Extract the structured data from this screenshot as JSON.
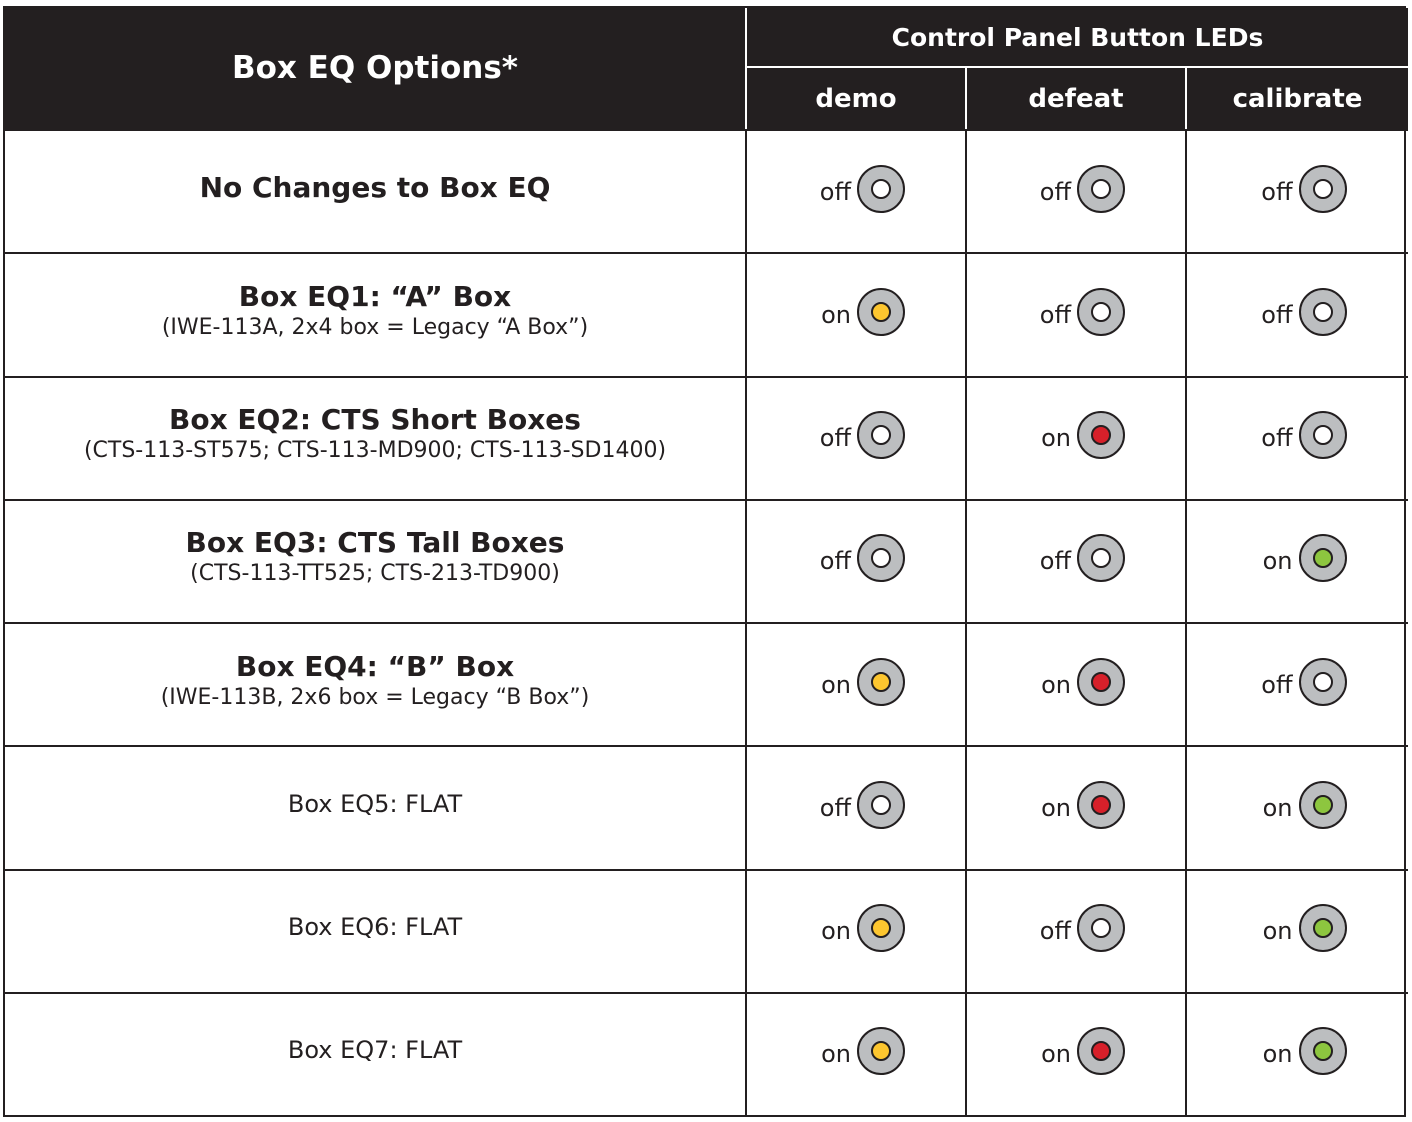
{
  "header": {
    "main": "Box EQ Options*",
    "group": "Control Panel Button LEDs",
    "columns": [
      "demo",
      "defeat",
      "calibrate"
    ]
  },
  "colors": {
    "off": "#ffffff",
    "yellow": "#fdc62f",
    "red": "#d7202a",
    "green": "#8dc63f"
  },
  "rows": [
    {
      "title": "No Changes to Box EQ",
      "subtitle": "",
      "bold": true,
      "leds": [
        {
          "state": "off",
          "color": "off"
        },
        {
          "state": "off",
          "color": "off"
        },
        {
          "state": "off",
          "color": "off"
        }
      ]
    },
    {
      "title": "Box EQ1: “A” Box",
      "subtitle": "(IWE-113A, 2x4 box = Legacy “A Box”)",
      "bold": true,
      "leds": [
        {
          "state": "on",
          "color": "yellow"
        },
        {
          "state": "off",
          "color": "off"
        },
        {
          "state": "off",
          "color": "off"
        }
      ]
    },
    {
      "title": "Box EQ2: CTS Short Boxes",
      "subtitle": "(CTS-113-ST575; CTS-113-MD900; CTS-113-SD1400)",
      "bold": true,
      "leds": [
        {
          "state": "off",
          "color": "off"
        },
        {
          "state": "on",
          "color": "red"
        },
        {
          "state": "off",
          "color": "off"
        }
      ]
    },
    {
      "title": "Box EQ3: CTS Tall Boxes",
      "subtitle": "(CTS-113-TT525; CTS-213-TD900)",
      "bold": true,
      "leds": [
        {
          "state": "off",
          "color": "off"
        },
        {
          "state": "off",
          "color": "off"
        },
        {
          "state": "on",
          "color": "green"
        }
      ]
    },
    {
      "title": "Box EQ4: “B” Box",
      "subtitle": "(IWE-113B, 2x6 box = Legacy “B Box”)",
      "bold": true,
      "leds": [
        {
          "state": "on",
          "color": "yellow"
        },
        {
          "state": "on",
          "color": "red"
        },
        {
          "state": "off",
          "color": "off"
        }
      ]
    },
    {
      "title": "Box EQ5: FLAT",
      "subtitle": "",
      "bold": false,
      "leds": [
        {
          "state": "off",
          "color": "off"
        },
        {
          "state": "on",
          "color": "red"
        },
        {
          "state": "on",
          "color": "green"
        }
      ]
    },
    {
      "title": "Box EQ6: FLAT",
      "subtitle": "",
      "bold": false,
      "leds": [
        {
          "state": "on",
          "color": "yellow"
        },
        {
          "state": "off",
          "color": "off"
        },
        {
          "state": "on",
          "color": "green"
        }
      ]
    },
    {
      "title": "Box EQ7: FLAT",
      "subtitle": "",
      "bold": false,
      "leds": [
        {
          "state": "on",
          "color": "yellow"
        },
        {
          "state": "on",
          "color": "red"
        },
        {
          "state": "on",
          "color": "green"
        }
      ]
    }
  ]
}
